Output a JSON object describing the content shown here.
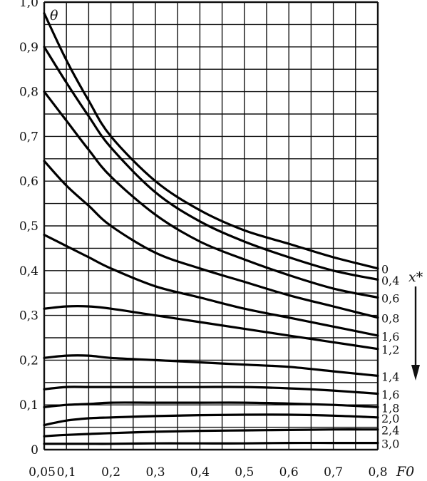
{
  "chart_data": {
    "type": "line",
    "xlabel": "F0",
    "ylabel": "θ",
    "series_label": "x*",
    "xlim": [
      0.05,
      0.8
    ],
    "ylim": [
      0,
      1.0
    ],
    "grid": true,
    "x_ticks": [
      0.05,
      0.1,
      0.15,
      0.2,
      0.25,
      0.3,
      0.35,
      0.4,
      0.45,
      0.5,
      0.55,
      0.6,
      0.65,
      0.7,
      0.75,
      0.8
    ],
    "x_tick_labels": [
      {
        "value": 0.05,
        "label": "0,05"
      },
      {
        "value": 0.1,
        "label": "0,1"
      },
      {
        "value": 0.2,
        "label": "0,2"
      },
      {
        "value": 0.3,
        "label": "0,3"
      },
      {
        "value": 0.4,
        "label": "0,4"
      },
      {
        "value": 0.5,
        "label": "0,5"
      },
      {
        "value": 0.6,
        "label": "0,6"
      },
      {
        "value": 0.7,
        "label": "0,7"
      },
      {
        "value": 0.8,
        "label": "0,8"
      }
    ],
    "y_ticks": [
      0,
      0.05,
      0.1,
      0.15,
      0.2,
      0.25,
      0.3,
      0.35,
      0.4,
      0.45,
      0.5,
      0.55,
      0.6,
      0.65,
      0.7,
      0.75,
      0.8,
      0.85,
      0.9,
      0.95,
      1.0
    ],
    "y_tick_labels": [
      {
        "value": 0,
        "label": "0"
      },
      {
        "value": 0.1,
        "label": "0,1"
      },
      {
        "value": 0.2,
        "label": "0,2"
      },
      {
        "value": 0.3,
        "label": "0,3"
      },
      {
        "value": 0.4,
        "label": "0,4"
      },
      {
        "value": 0.5,
        "label": "0,5"
      },
      {
        "value": 0.6,
        "label": "0,6"
      },
      {
        "value": 0.7,
        "label": "0,7"
      },
      {
        "value": 0.8,
        "label": "0,8"
      },
      {
        "value": 0.9,
        "label": "0,9"
      },
      {
        "value": 1.0,
        "label": "1,0"
      }
    ],
    "x": [
      0.05,
      0.1,
      0.15,
      0.2,
      0.3,
      0.4,
      0.5,
      0.6,
      0.7,
      0.8
    ],
    "series": [
      {
        "name": "0",
        "values": [
          0.975,
          0.87,
          0.78,
          0.7,
          0.6,
          0.535,
          0.49,
          0.46,
          0.43,
          0.405
        ]
      },
      {
        "name": "0,4",
        "values": [
          0.9,
          0.82,
          0.745,
          0.675,
          0.575,
          0.51,
          0.465,
          0.43,
          0.4,
          0.38
        ]
      },
      {
        "name": "0,6",
        "values": [
          0.8,
          0.735,
          0.67,
          0.61,
          0.525,
          0.465,
          0.425,
          0.39,
          0.36,
          0.34
        ]
      },
      {
        "name": "0,8",
        "values": [
          0.645,
          0.59,
          0.545,
          0.5,
          0.44,
          0.405,
          0.375,
          0.345,
          0.32,
          0.295
        ]
      },
      {
        "name": "1,6",
        "values": [
          0.48,
          0.455,
          0.43,
          0.405,
          0.365,
          0.34,
          0.315,
          0.295,
          0.275,
          0.255
        ]
      },
      {
        "name": "1,2",
        "values": [
          0.315,
          0.32,
          0.32,
          0.315,
          0.3,
          0.285,
          0.27,
          0.255,
          0.24,
          0.225
        ]
      },
      {
        "name": "1,4",
        "values": [
          0.205,
          0.21,
          0.21,
          0.205,
          0.2,
          0.195,
          0.19,
          0.185,
          0.175,
          0.165
        ]
      },
      {
        "name": "1,6",
        "values": [
          0.135,
          0.14,
          0.14,
          0.14,
          0.14,
          0.14,
          0.14,
          0.137,
          0.132,
          0.125
        ]
      },
      {
        "name": "1,8",
        "values": [
          0.095,
          0.1,
          0.102,
          0.105,
          0.105,
          0.105,
          0.105,
          0.103,
          0.1,
          0.095
        ]
      },
      {
        "name": "2,0",
        "values": [
          0.055,
          0.065,
          0.07,
          0.072,
          0.075,
          0.077,
          0.078,
          0.078,
          0.076,
          0.072
        ]
      },
      {
        "name": "2,4",
        "values": [
          0.03,
          0.033,
          0.035,
          0.037,
          0.04,
          0.042,
          0.043,
          0.044,
          0.045,
          0.045
        ]
      },
      {
        "name": "3,0",
        "values": [
          0.013,
          0.013,
          0.013,
          0.013,
          0.014,
          0.014,
          0.014,
          0.015,
          0.015,
          0.015
        ]
      }
    ]
  }
}
